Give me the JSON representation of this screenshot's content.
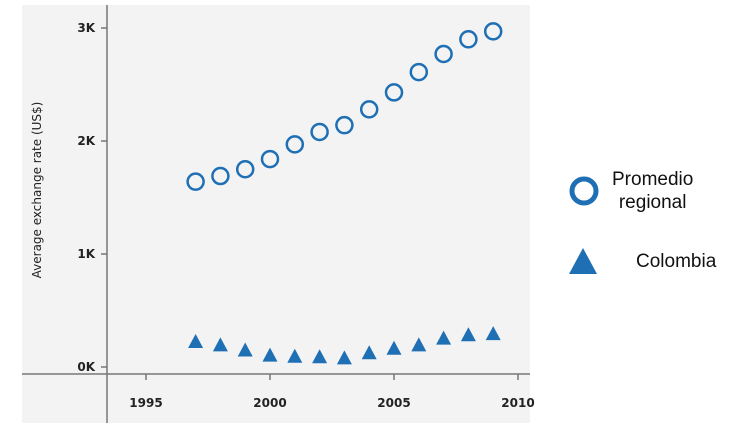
{
  "chart_data": {
    "type": "scatter",
    "ylabel": "Average exchange rate (US$)",
    "xlabel": "",
    "xlim": [
      1987,
      2010.5
    ],
    "ylim": [
      -80,
      3160
    ],
    "x_ticks": [
      1995,
      2000,
      2005,
      2010
    ],
    "x_tick_labels": [
      "1995",
      "2000",
      "2005",
      "2010"
    ],
    "y_ticks": [
      0,
      1000,
      2000,
      3000
    ],
    "y_tick_labels": [
      "0K",
      "1K",
      "2K",
      "3K"
    ],
    "grid": false,
    "legend_position": "right",
    "series": [
      {
        "name": "Promedio regional",
        "marker": "circle-open",
        "color": "#1f6fb5",
        "x": [
          1997,
          1998,
          1999,
          2000,
          2001,
          2002,
          2003,
          2004,
          2005,
          2006,
          2007,
          2008,
          2009
        ],
        "y": [
          1640,
          1690,
          1750,
          1840,
          1970,
          2080,
          2140,
          2280,
          2430,
          2610,
          2770,
          2900,
          2970
        ]
      },
      {
        "name": "Colombia",
        "marker": "triangle",
        "color": "#1f6fb5",
        "x": [
          1997,
          1998,
          1999,
          2000,
          2001,
          2002,
          2003,
          2004,
          2005,
          2006,
          2007,
          2008,
          2009
        ],
        "y": [
          230,
          200,
          155,
          110,
          100,
          95,
          85,
          130,
          170,
          200,
          260,
          290,
          300
        ]
      }
    ]
  },
  "legend": {
    "regional_line1": "Promedio",
    "regional_line2": "regional",
    "colombia": "Colombia"
  }
}
